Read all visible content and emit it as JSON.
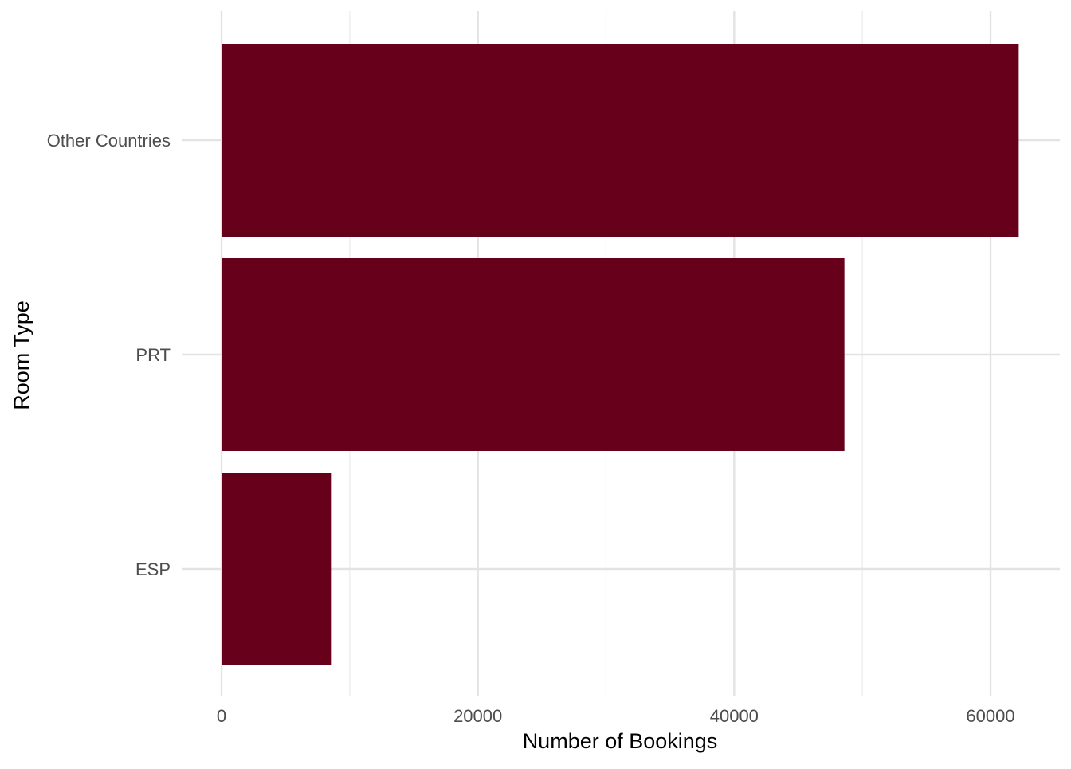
{
  "chart_data": {
    "type": "bar",
    "orientation": "horizontal",
    "categories": [
      "Other Countries",
      "PRT",
      "ESP"
    ],
    "values": [
      62200,
      48600,
      8600
    ],
    "xlabel": "Number of Bookings",
    "ylabel": "Room Type",
    "xlim": [
      0,
      65000
    ],
    "x_ticks": [
      0,
      20000,
      40000,
      60000
    ],
    "bar_color": "#67001a",
    "grid": true,
    "legend": "none"
  }
}
